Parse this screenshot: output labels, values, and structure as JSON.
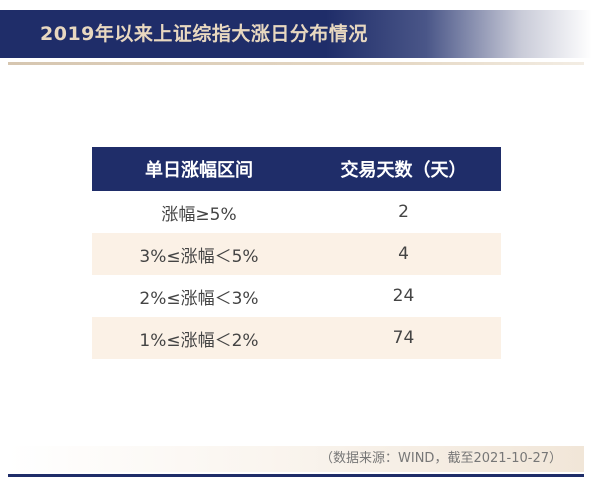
{
  "title": "2019年以来上证综指大涨日分布情况",
  "table": {
    "headers": [
      "单日涨幅区间",
      "交易天数（天）"
    ],
    "rows": [
      {
        "range": "涨幅≥5%",
        "days": "2"
      },
      {
        "range": "3%≤涨幅＜5%",
        "days": "4"
      },
      {
        "range": "2%≤涨幅＜3%",
        "days": "24"
      },
      {
        "range": "1%≤涨幅＜2%",
        "days": "74"
      }
    ]
  },
  "source_note": "（数据来源：WIND，截至2021-10-27）",
  "colors": {
    "navy": "#1f2d69",
    "title_text": "#e8d8c0",
    "alt_row": "#fbf1e6"
  }
}
